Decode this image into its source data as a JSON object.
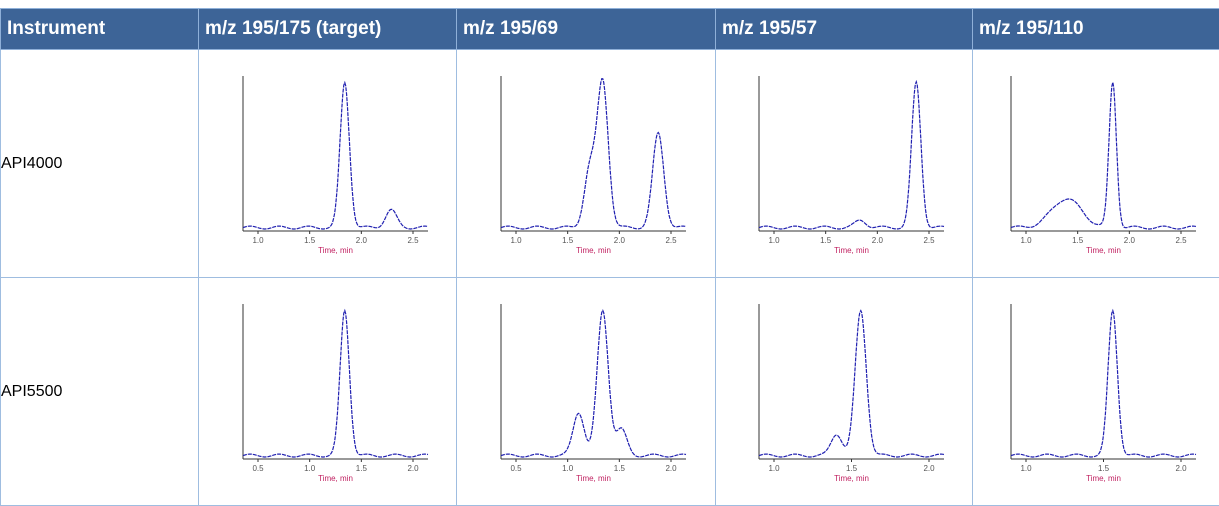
{
  "table": {
    "header": [
      "Instrument",
      "m/z 195/175 (target)",
      "m/z 195/69",
      "m/z 195/57",
      "m/z 195/110"
    ],
    "rows": [
      {
        "label": "API4000",
        "plots": [
          {
            "x_ticks": [
              "1.0",
              "1.5",
              "2.0",
              "2.5"
            ],
            "x_label": "Time, min"
          },
          {
            "x_ticks": [
              "1.0",
              "1.5",
              "2.0",
              "2.5"
            ],
            "x_label": "Time, min"
          },
          {
            "x_ticks": [
              "1.0",
              "1.5",
              "2.0",
              "2.5"
            ],
            "x_label": "Time, min"
          },
          {
            "x_ticks": [
              "1.0",
              "1.5",
              "2.0",
              "2.5"
            ],
            "x_label": "Time, min"
          }
        ]
      },
      {
        "label": "API5500",
        "plots": [
          {
            "x_ticks": [
              "0.5",
              "1.0",
              "1.5",
              "2.0"
            ],
            "x_label": "Time, min"
          },
          {
            "x_ticks": [
              "0.5",
              "1.0",
              "1.5",
              "2.0"
            ],
            "x_label": "Time, min"
          },
          {
            "x_ticks": [
              "1.0",
              "1.5",
              "2.0"
            ],
            "x_label": "Time, min"
          },
          {
            "x_ticks": [
              "1.0",
              "1.5",
              "2.0"
            ],
            "x_label": "Time, min"
          }
        ]
      }
    ]
  }
}
